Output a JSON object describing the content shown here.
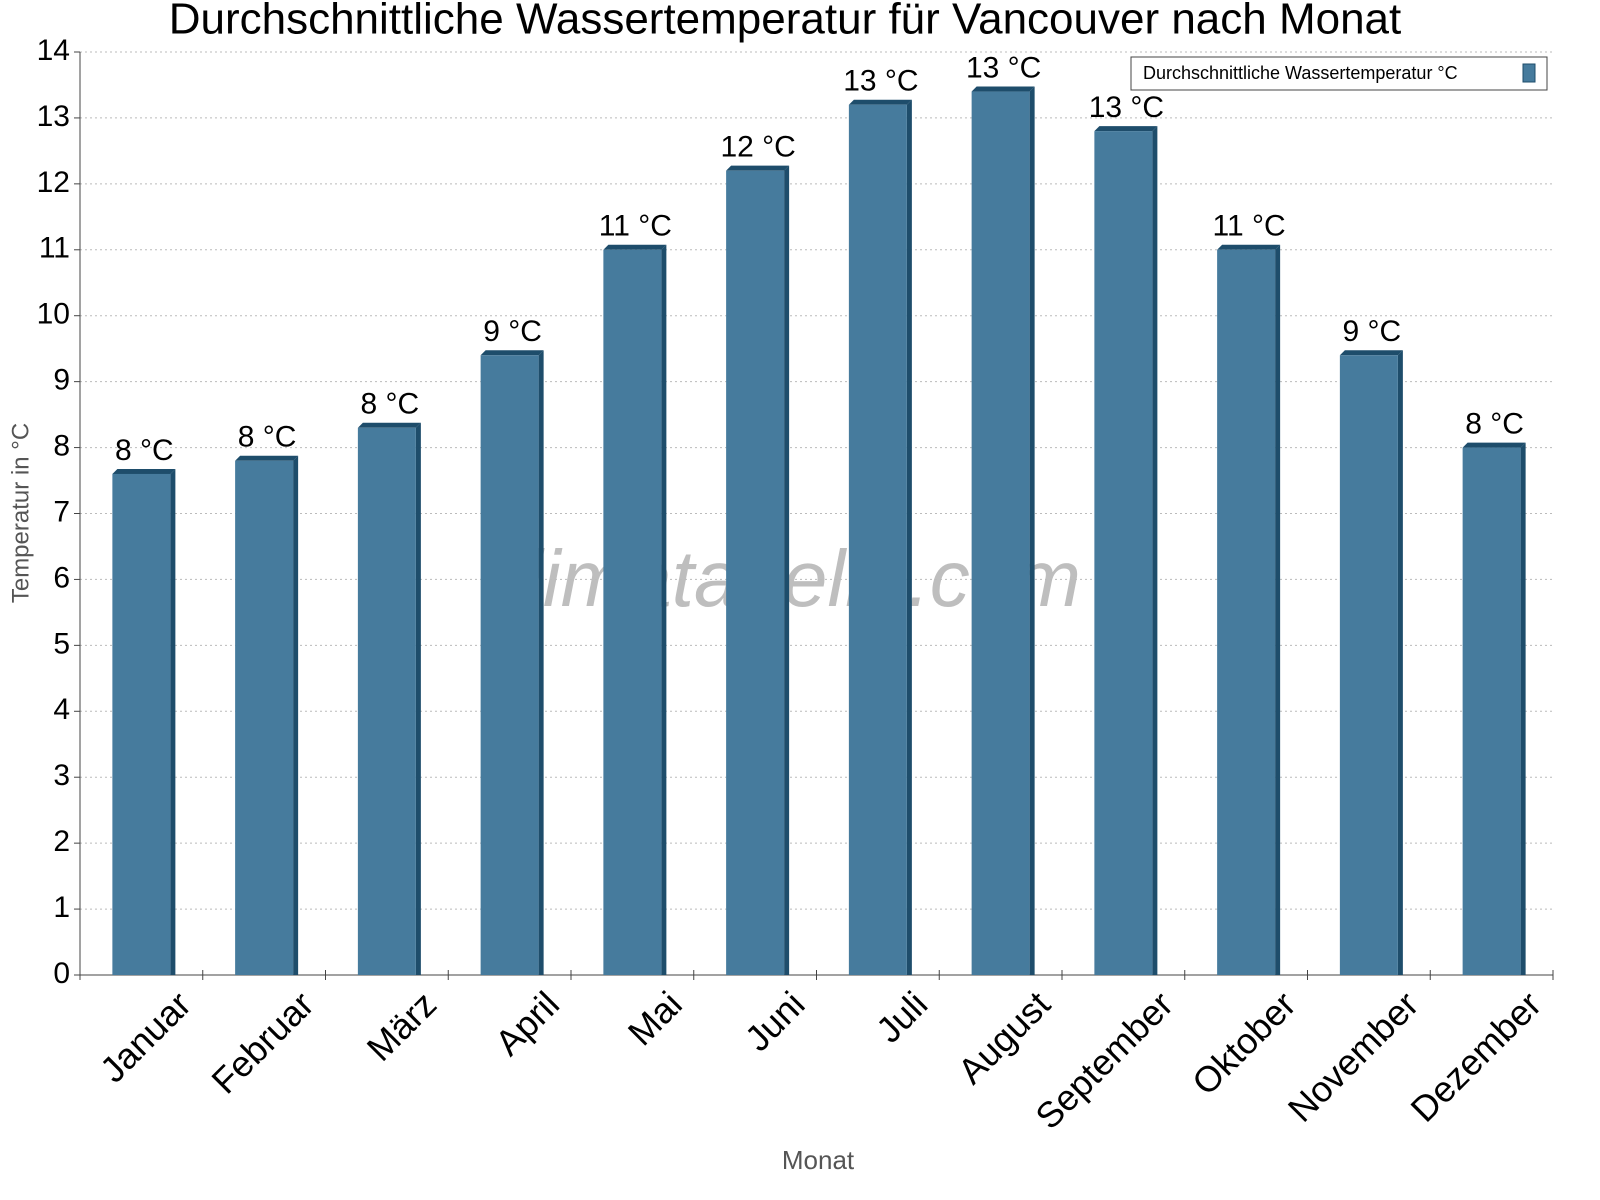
{
  "chart_data": {
    "type": "bar",
    "title": "Durchschnittliche Wassertemperatur für Vancouver nach Monat",
    "x_label": "Monat",
    "y_label": "Temperatur in °C",
    "watermark": "klimatabelle.com",
    "categories": [
      "Januar",
      "Februar",
      "März",
      "April",
      "Mai",
      "Juni",
      "Juli",
      "August",
      "September",
      "Oktober",
      "November",
      "Dezember"
    ],
    "series": [
      {
        "name": "Durchschnittliche Wassertemperatur °C",
        "color": "#467b9d",
        "values": [
          7.6,
          7.8,
          8.3,
          9.4,
          11.0,
          12.2,
          13.2,
          13.4,
          12.8,
          11.0,
          9.4,
          8.0
        ],
        "value_labels": [
          "8 °C",
          "8 °C",
          "8 °C",
          "9 °C",
          "11 °C",
          "12 °C",
          "13 °C",
          "13 °C",
          "13 °C",
          "11 °C",
          "9 °C",
          "8 °C"
        ]
      }
    ],
    "ylim": [
      0,
      14
    ],
    "yticks": [
      0,
      1,
      2,
      3,
      4,
      5,
      6,
      7,
      8,
      9,
      10,
      11,
      12,
      13,
      14
    ],
    "grid": true,
    "legend": "top-right"
  }
}
